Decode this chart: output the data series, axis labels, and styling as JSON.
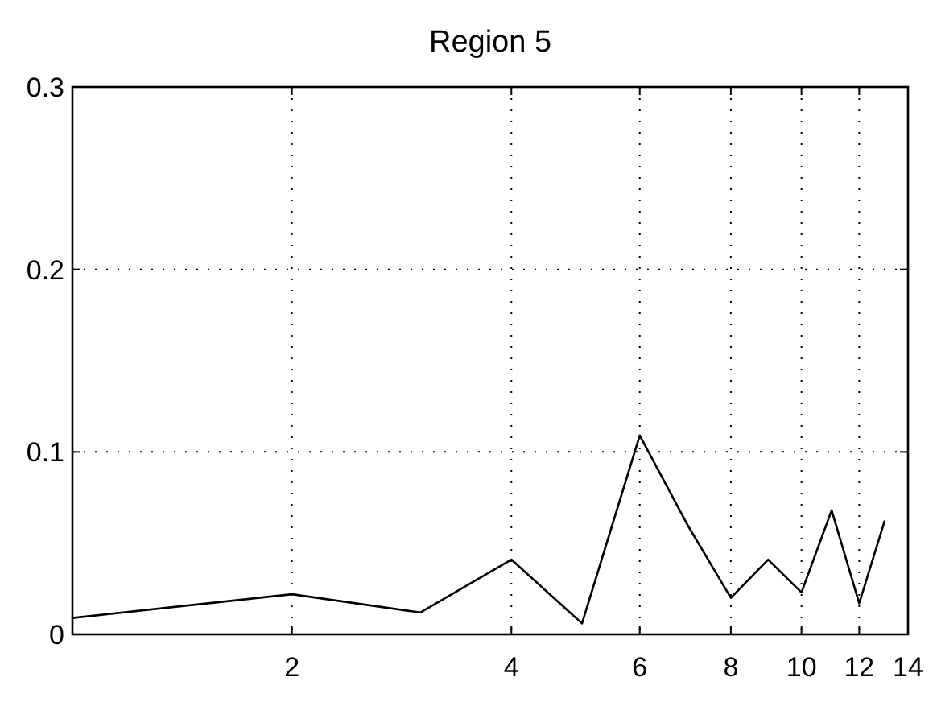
{
  "chart_data": {
    "type": "line",
    "title": "Region 5",
    "x": [
      1,
      2,
      3,
      4,
      5,
      6,
      7,
      8,
      9,
      10,
      11,
      12,
      13
    ],
    "series": [
      {
        "color": "#000000",
        "values": [
          0.009,
          0.022,
          0.012,
          0.041,
          0.006,
          0.109,
          0.059,
          0.02,
          0.041,
          0.023,
          0.068,
          0.017,
          0.062
        ]
      }
    ],
    "log": "x",
    "xlim": [
      1,
      14
    ],
    "xticks": [
      2,
      4,
      6,
      8,
      10,
      12,
      14
    ],
    "ylim": [
      0,
      0.3
    ],
    "yticks": [
      0,
      0.1,
      0.2,
      0.3
    ],
    "grid": true,
    "line_style": "solid",
    "marker": "none"
  }
}
